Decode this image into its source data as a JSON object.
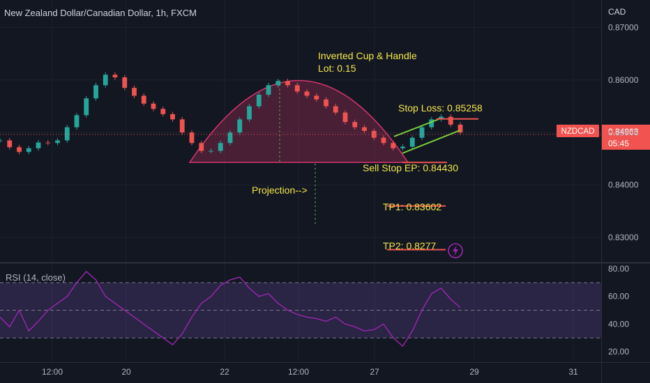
{
  "header": {
    "title": "New Zealand Dollar/Canadian Dollar, 1h, FXCM",
    "currency": "CAD"
  },
  "colors": {
    "background": "#131722",
    "up": "#26a69a",
    "down": "#ef5350",
    "annotation_text": "#f5e74a",
    "cup": "#d6356d",
    "channel": "#7dd13a",
    "projection": "#4caf50",
    "rsi_line": "#9c27b0",
    "price_badge": "#f05350"
  },
  "price_badge": {
    "symbol": "NZDCAD",
    "price": "0.84963",
    "countdown": "05:45"
  },
  "chart_data": [
    {
      "type": "line",
      "title": "",
      "series": [
        {
          "values": [
            0.8485,
            0.8472,
            0.8463,
            0.847,
            0.8481,
            0.848,
            0.8485,
            0.851,
            0.8533,
            0.8565,
            0.859,
            0.861,
            0.8605,
            0.8585,
            0.857,
            0.8555,
            0.8545,
            0.8535,
            0.8525,
            0.85,
            0.848,
            0.8465,
            0.8465,
            0.848,
            0.85,
            0.8525,
            0.855,
            0.8572,
            0.859,
            0.8598,
            0.859,
            0.8578,
            0.857,
            0.8563,
            0.855,
            0.8538,
            0.852,
            0.851,
            0.8503,
            0.849,
            0.848,
            0.847,
            0.8473,
            0.849,
            0.851,
            0.8525,
            0.853,
            0.8515,
            0.85
          ]
        }
      ],
      "y_ticks": [
        "0.87000",
        "0.86000",
        "0.85000",
        "0.84000",
        "0.83000"
      ],
      "ylim": [
        0.8275,
        0.8735
      ],
      "x_ticks": [
        "12:00",
        "20",
        "22",
        "12:00",
        "27",
        "29",
        "31"
      ],
      "annotations": {
        "pattern": "Inverted Cup & Handle",
        "lot": "Lot: 0.15",
        "stop_loss": "Stop Loss: 0.85258",
        "entry": "Sell Stop EP: 0.84430",
        "projection": "Projection-->",
        "tp1": "TP1: 0.83602",
        "tp2": "TP2: 0.8277"
      },
      "levels": {
        "stop_loss": 0.85258,
        "entry": 0.8443,
        "tp1": 0.83602,
        "tp2": 0.8277,
        "cup_top": 0.8599
      }
    },
    {
      "type": "line",
      "title": "RSI (14, close)",
      "series": [
        {
          "name": "RSI (14, close)",
          "values": [
            45,
            38,
            50,
            35,
            42,
            50,
            55,
            60,
            70,
            78,
            72,
            60,
            55,
            50,
            45,
            40,
            35,
            30,
            25,
            33,
            45,
            55,
            60,
            68,
            72,
            74,
            66,
            60,
            62,
            55,
            50,
            47,
            45,
            44,
            42,
            45,
            40,
            38,
            35,
            36,
            40,
            30,
            24,
            35,
            50,
            62,
            66,
            58,
            52
          ]
        }
      ],
      "y_ticks": [
        "80.00",
        "60.00",
        "40.00",
        "20.00"
      ],
      "ylim": [
        15,
        82
      ],
      "levels": [
        70,
        50,
        30
      ]
    }
  ]
}
